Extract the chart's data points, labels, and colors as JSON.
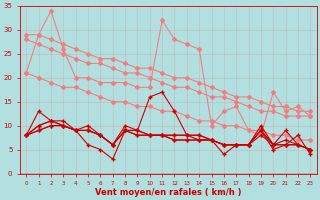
{
  "xlabel": "Vent moyen/en rafales ( km/h )",
  "background_color": "#b2e0e0",
  "grid_color": "#c0c0c0",
  "x": [
    0,
    1,
    2,
    3,
    4,
    5,
    6,
    7,
    8,
    9,
    10,
    11,
    12,
    13,
    14,
    15,
    16,
    17,
    18,
    19,
    20,
    21,
    22,
    23
  ],
  "line_light1": [
    21,
    29,
    34,
    26,
    20,
    20,
    19,
    19,
    19,
    18,
    18,
    32,
    28,
    27,
    26,
    10,
    13,
    14,
    9,
    8,
    17,
    13,
    14,
    12
  ],
  "line_light2": [
    29,
    29,
    28,
    27,
    26,
    25,
    24,
    24,
    23,
    22,
    22,
    21,
    20,
    20,
    19,
    18,
    17,
    16,
    16,
    15,
    14,
    14,
    13,
    13
  ],
  "line_light3": [
    28,
    27,
    26,
    25,
    24,
    23,
    23,
    22,
    21,
    21,
    20,
    19,
    18,
    18,
    17,
    16,
    16,
    15,
    14,
    13,
    13,
    12,
    12,
    12
  ],
  "line_light4": [
    21,
    20,
    19,
    18,
    18,
    17,
    16,
    15,
    15,
    14,
    14,
    13,
    13,
    12,
    11,
    11,
    10,
    10,
    9,
    9,
    8,
    8,
    7,
    7
  ],
  "line_dark1": [
    8,
    13,
    11,
    11,
    9,
    6,
    5,
    3,
    9,
    9,
    16,
    17,
    13,
    8,
    7,
    7,
    4,
    6,
    6,
    9,
    5,
    6,
    8,
    4
  ],
  "line_dark2": [
    8,
    10,
    11,
    10,
    9,
    10,
    8,
    6,
    10,
    9,
    8,
    8,
    8,
    8,
    8,
    7,
    6,
    6,
    6,
    10,
    6,
    7,
    6,
    5
  ],
  "line_dark3": [
    8,
    10,
    11,
    10,
    9,
    9,
    8,
    6,
    9,
    9,
    8,
    8,
    8,
    8,
    8,
    7,
    6,
    6,
    6,
    9,
    6,
    6,
    6,
    5
  ],
  "line_dark4": [
    8,
    9,
    10,
    10,
    9,
    9,
    8,
    6,
    9,
    8,
    8,
    8,
    7,
    7,
    7,
    7,
    6,
    6,
    6,
    8,
    6,
    6,
    6,
    5
  ],
  "line_dark5": [
    8,
    9,
    10,
    10,
    9,
    9,
    8,
    6,
    9,
    8,
    8,
    8,
    7,
    7,
    7,
    7,
    6,
    6,
    6,
    9,
    6,
    9,
    6,
    5
  ],
  "color_dark": "#cc0000",
  "color_light": "#f08080",
  "marker_dark": "+",
  "marker_light": "D",
  "marker_size_dark": 3.0,
  "marker_size_light": 2.0,
  "linewidth_dark": 0.8,
  "linewidth_light": 0.8,
  "ylim": [
    0,
    35
  ],
  "xlim": [
    -0.5,
    23.5
  ],
  "yticks": [
    0,
    5,
    10,
    15,
    20,
    25,
    30,
    35
  ],
  "xticks": [
    0,
    1,
    2,
    3,
    4,
    5,
    6,
    7,
    8,
    9,
    10,
    11,
    12,
    13,
    14,
    15,
    16,
    17,
    18,
    19,
    20,
    21,
    22,
    23
  ],
  "figsize": [
    3.2,
    2.0
  ],
  "dpi": 100
}
